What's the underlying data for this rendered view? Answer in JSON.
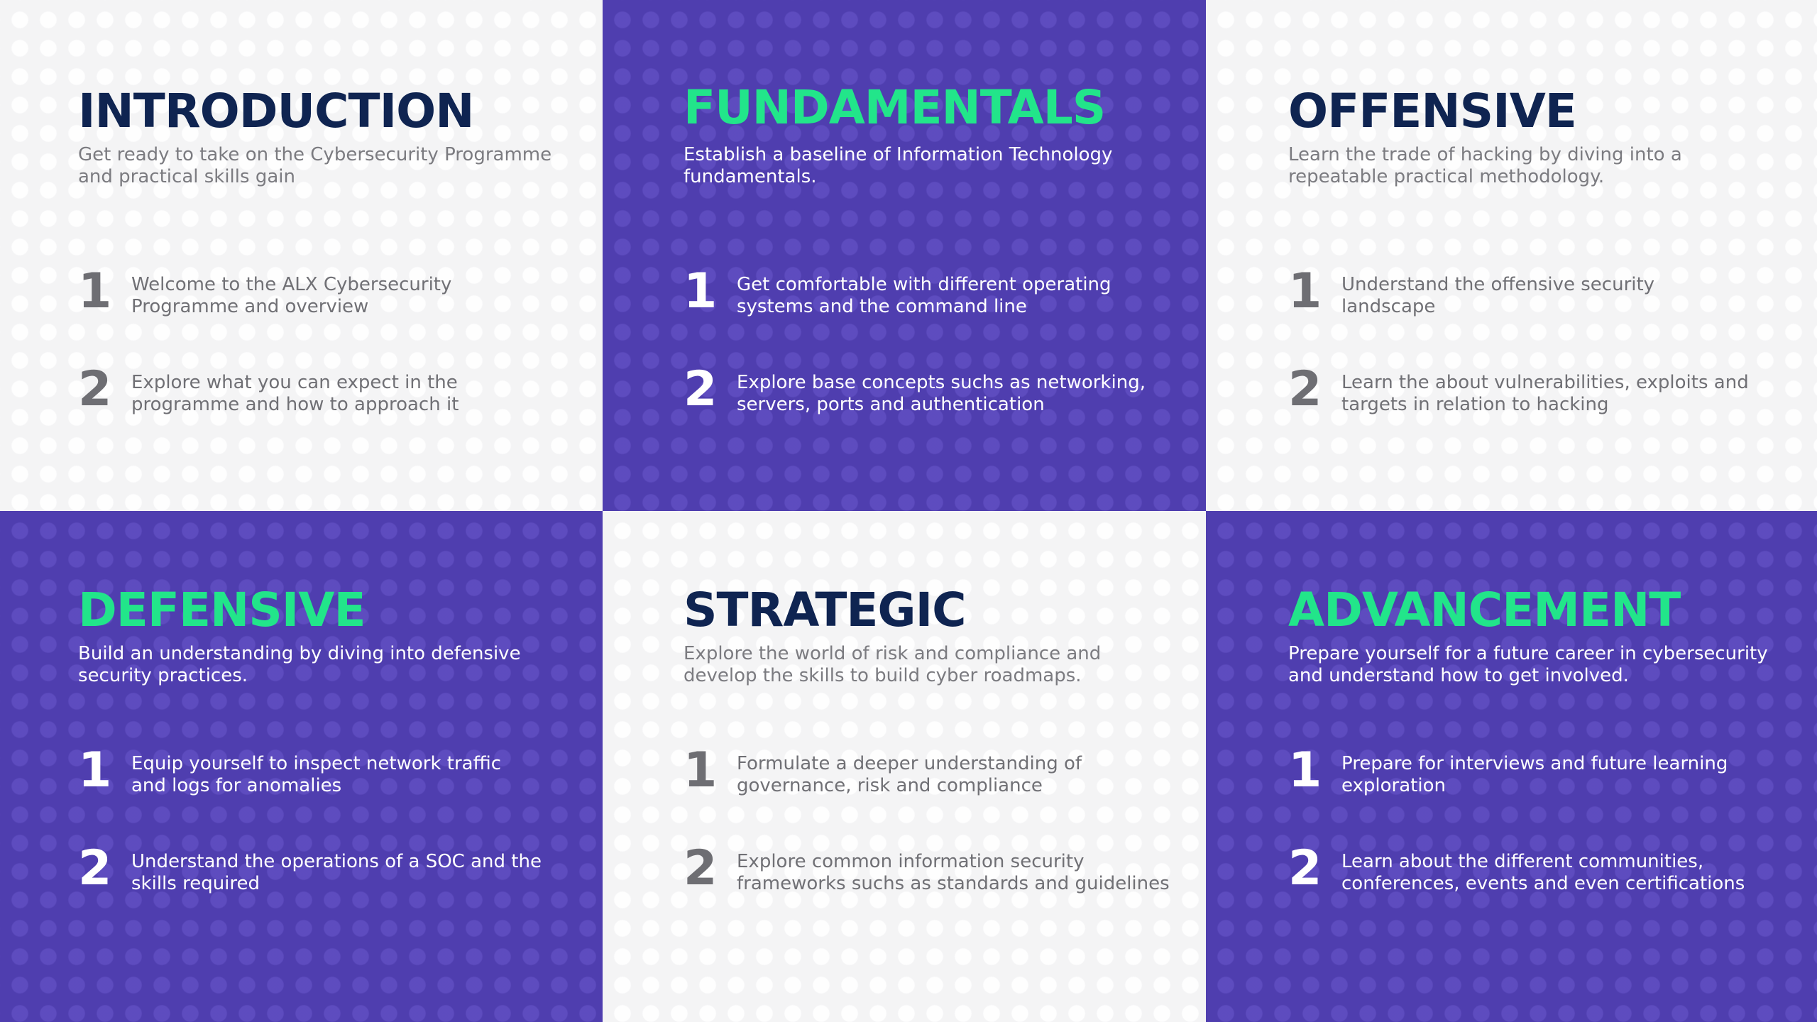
{
  "colors": {
    "dark_panel": "#4f3eaf",
    "light_panel": "#f4f4f5",
    "dark_title": "#22e58a",
    "light_title": "#0f2451",
    "muted_text": "#707075"
  },
  "panels": [
    {
      "title": "INTRODUCTION",
      "subtitle": "Get ready to take on the Cybersecurity Programme and practical skills gain",
      "items": [
        {
          "num": "1",
          "text": "Welcome to the ALX Cybersecurity Programme and overview"
        },
        {
          "num": "2",
          "text": " Explore what you can expect in the programme and how to approach it"
        }
      ]
    },
    {
      "title": "FUNDAMENTALS",
      "subtitle": "Establish a baseline of Information Technology fundamentals.",
      "items": [
        {
          "num": "1",
          "text": "Get comfortable with different operating systems and the command line"
        },
        {
          "num": "2",
          "text": "Explore base concepts suchs as networking, servers, ports and authentication"
        }
      ]
    },
    {
      "title": "OFFENSIVE",
      "subtitle": "Learn the trade of hacking by diving into a repeatable practical methodology.",
      "items": [
        {
          "num": "1",
          "text": "Understand the offensive security landscape"
        },
        {
          "num": "2",
          "text": "Learn the about vulnerabilities, exploits and targets in relation to hacking"
        }
      ]
    },
    {
      "title": "DEFENSIVE",
      "subtitle": "Build an understanding by diving into defensive security practices.",
      "items": [
        {
          "num": "1",
          "text": "Equip yourself to inspect network traffic and logs for anomalies"
        },
        {
          "num": "2",
          "text": "Understand the operations of a SOC and the skills required"
        }
      ]
    },
    {
      "title": "STRATEGIC",
      "subtitle": "Explore the world of risk and compliance and develop the skills to build cyber roadmaps.",
      "items": [
        {
          "num": "1",
          "text": "Formulate a deeper understanding of governance, risk and compliance"
        },
        {
          "num": "2",
          "text": "Explore common information security frameworks suchs as standards and guidelines"
        }
      ]
    },
    {
      "title": "ADVANCEMENT",
      "subtitle": "Prepare yourself for a future career in cybersecurity and understand how to get involved.",
      "items": [
        {
          "num": "1",
          "text": "Prepare for interviews and future learning exploration"
        },
        {
          "num": "2",
          "text": "Learn about the different communities, conferences, events and even certifications"
        }
      ]
    }
  ]
}
